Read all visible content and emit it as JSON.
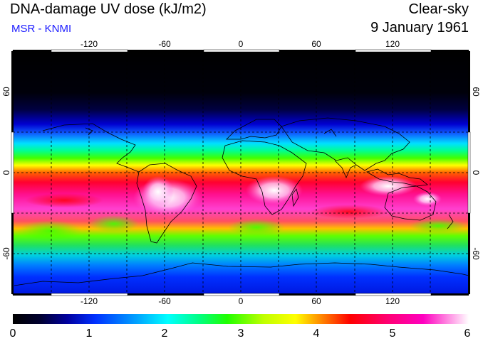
{
  "header": {
    "title": "DNA-damage UV dose (kJ/m2)",
    "subtitle": "MSR - KNMI",
    "mode": "Clear-sky",
    "date": "9 January 1961"
  },
  "map": {
    "lon_ticks": [
      "-120",
      "-60",
      "0",
      "60",
      "120"
    ],
    "lat_ticks_left": [
      "60",
      "0",
      "-60"
    ],
    "lat_ticks_right": [
      "60",
      "0",
      "-60"
    ]
  },
  "colorbar": {
    "labels": [
      "0",
      "1",
      "2",
      "3",
      "4",
      "5",
      "6"
    ]
  }
}
